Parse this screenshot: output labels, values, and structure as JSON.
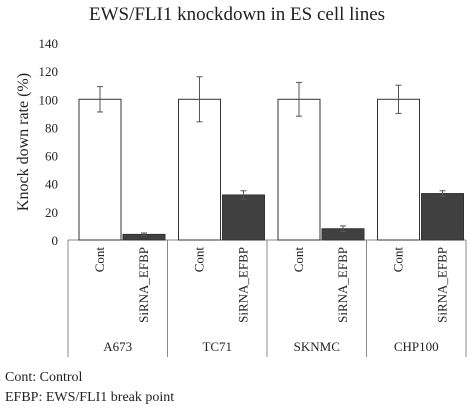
{
  "chart_data": {
    "type": "bar",
    "title": "EWS/FLI1 knockdown in ES cell lines",
    "xlabel": "",
    "ylabel": "Knock down rate (%)",
    "ylim": [
      0,
      140
    ],
    "yticks": [
      0,
      20,
      40,
      60,
      80,
      100,
      120,
      140
    ],
    "grid": false,
    "groups": [
      {
        "name": "A673",
        "bars": [
          {
            "label": "Cont",
            "value": 100,
            "error": 9
          },
          {
            "label": "SiRNA_EFBP",
            "value": 4,
            "error": 1
          }
        ]
      },
      {
        "name": "TC71",
        "bars": [
          {
            "label": "Cont",
            "value": 100,
            "error": 16
          },
          {
            "label": "SiRNA_EFBP",
            "value": 32,
            "error": 3
          }
        ]
      },
      {
        "name": "SKNMC",
        "bars": [
          {
            "label": "Cont",
            "value": 100,
            "error": 12
          },
          {
            "label": "SiRNA_EFBP",
            "value": 8,
            "error": 2
          }
        ]
      },
      {
        "name": "CHP100",
        "bars": [
          {
            "label": "Cont",
            "value": 100,
            "error": 10
          },
          {
            "label": "SiRNA_EFBP",
            "value": 33,
            "error": 2
          }
        ]
      }
    ],
    "colors": {
      "Cont": "#ffffff",
      "SiRNA_EFBP": "#404040",
      "outline": "#333333",
      "axis": "#888888"
    },
    "footnotes": [
      "Cont: Control",
      "EFBP: EWS/FLI1 break point"
    ]
  }
}
